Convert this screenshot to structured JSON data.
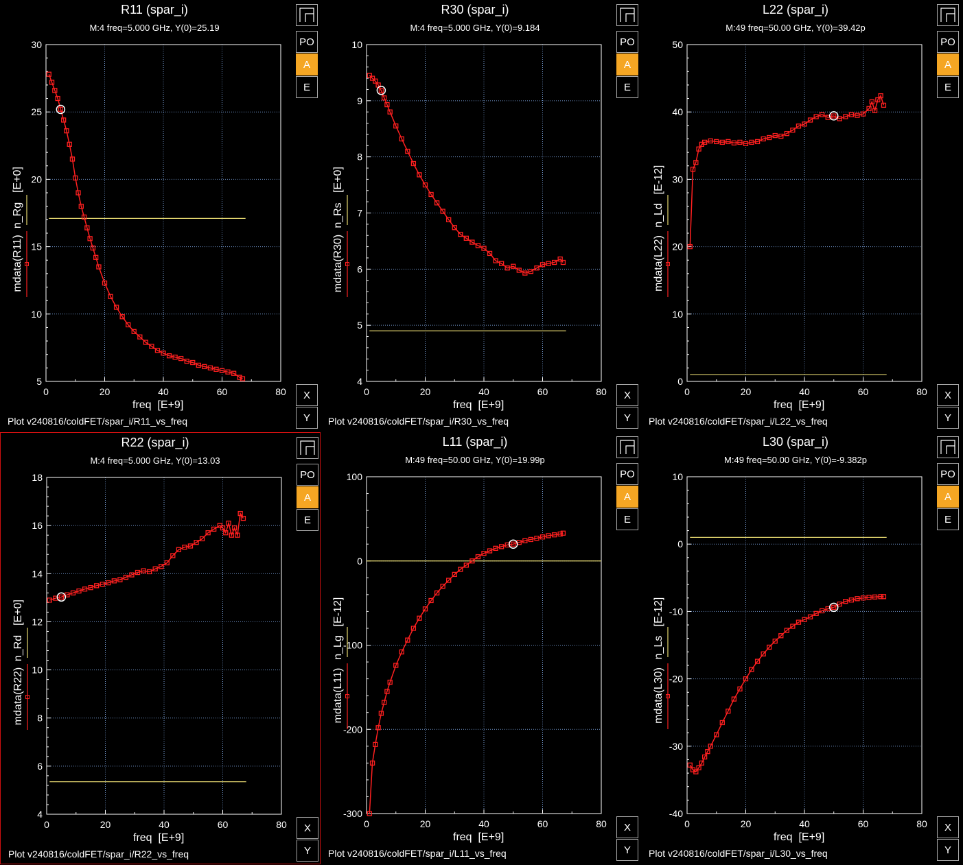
{
  "buttons": {
    "po": "PO",
    "a": "A",
    "e": "E",
    "x": "X",
    "y": "Y"
  },
  "colors": {
    "trace": "#ff2020",
    "ref": "#e6d870",
    "grid": "#6f93c8",
    "active_border": "#d01010",
    "accent": "#f5a623"
  },
  "panels": [
    {
      "title": "R11 (spar_i)",
      "subtitle": "M:4 freq=5.000  GHz, Y(0)=25.19",
      "xlabel": "freq  [E+9]",
      "ylabel_main": "mdata(R11)",
      "ylabel_ref": "n_Rg",
      "ylabel_unit": "[E+0]",
      "footer": "Plot v240816/coldFET/spar_i/R11_vs_freq",
      "active": false,
      "chart_data": {
        "type": "line",
        "xlim": [
          0,
          80
        ],
        "ylim": [
          5,
          30
        ],
        "xticks": [
          0,
          20,
          40,
          60,
          80
        ],
        "yticks": [
          5,
          10,
          15,
          20,
          25,
          30
        ],
        "xtick_labels": [
          "0",
          "20",
          "40",
          "60",
          "80"
        ],
        "ytick_labels": [
          "5",
          "10",
          "15",
          "20",
          "25",
          "30"
        ],
        "grid": true,
        "marker": {
          "x": 5,
          "y": 25.19
        },
        "ref_value": 17.1,
        "ref_xrange": [
          1,
          68
        ],
        "series": [
          {
            "x": [
              1,
              2,
              3,
              4,
              5,
              6,
              7,
              8,
              9,
              10,
              11,
              12,
              13,
              14,
              15,
              16,
              17,
              18,
              20,
              22,
              24,
              26,
              28,
              30,
              32,
              34,
              36,
              38,
              40,
              42,
              44,
              46,
              48,
              50,
              52,
              54,
              56,
              58,
              60,
              62,
              64,
              66,
              67
            ],
            "y": [
              27.8,
              27.2,
              26.6,
              26.0,
              25.2,
              24.4,
              23.6,
              22.6,
              21.5,
              20.1,
              19.0,
              18.0,
              17.2,
              16.4,
              15.6,
              14.9,
              14.2,
              13.5,
              12.3,
              11.3,
              10.5,
              9.8,
              9.2,
              8.7,
              8.3,
              7.9,
              7.6,
              7.3,
              7.1,
              6.9,
              6.8,
              6.7,
              6.5,
              6.4,
              6.2,
              6.1,
              6.0,
              5.9,
              5.8,
              5.7,
              5.6,
              5.3,
              5.2
            ]
          }
        ]
      }
    },
    {
      "title": "R30 (spar_i)",
      "subtitle": "M:4 freq=5.000  GHz, Y(0)=9.184",
      "xlabel": "freq  [E+9]",
      "ylabel_main": "mdata(R30)",
      "ylabel_ref": "n_Rs",
      "ylabel_unit": "[E+0]",
      "footer": "Plot v240816/coldFET/spar_i/R30_vs_freq",
      "active": false,
      "chart_data": {
        "type": "line",
        "xlim": [
          0,
          80
        ],
        "ylim": [
          4,
          10
        ],
        "xticks": [
          0,
          20,
          40,
          60,
          80
        ],
        "yticks": [
          4,
          5,
          6,
          7,
          8,
          9,
          10
        ],
        "xtick_labels": [
          "0",
          "20",
          "40",
          "60",
          "80"
        ],
        "ytick_labels": [
          "4",
          "5",
          "6",
          "7",
          "8",
          "9",
          "10"
        ],
        "grid": true,
        "marker": {
          "x": 5,
          "y": 9.184
        },
        "ref_value": 4.9,
        "ref_xrange": [
          1,
          68
        ],
        "series": [
          {
            "x": [
              1,
              2,
              3,
              4,
              5,
              6,
              7,
              8,
              10,
              12,
              14,
              16,
              18,
              20,
              22,
              24,
              26,
              28,
              30,
              32,
              34,
              36,
              38,
              40,
              42,
              44,
              46,
              48,
              50,
              52,
              54,
              56,
              58,
              60,
              62,
              64,
              66,
              67
            ],
            "y": [
              9.45,
              9.4,
              9.35,
              9.28,
              9.18,
              9.05,
              8.93,
              8.8,
              8.55,
              8.32,
              8.1,
              7.88,
              7.68,
              7.5,
              7.33,
              7.18,
              7.03,
              6.88,
              6.74,
              6.62,
              6.55,
              6.48,
              6.42,
              6.37,
              6.28,
              6.15,
              6.1,
              6.02,
              6.05,
              5.98,
              5.93,
              5.96,
              6.02,
              6.08,
              6.1,
              6.12,
              6.18,
              6.12
            ]
          }
        ]
      }
    },
    {
      "title": "L22 (spar_i)",
      "subtitle": "M:49 freq=50.00  GHz, Y(0)=39.42p",
      "xlabel": "freq  [E+9]",
      "ylabel_main": "mdata(L22)",
      "ylabel_ref": "n_Ld",
      "ylabel_unit": "[E-12]",
      "footer": "Plot v240816/coldFET/spar_i/L22_vs_freq",
      "active": false,
      "chart_data": {
        "type": "line",
        "xlim": [
          0,
          80
        ],
        "ylim": [
          0,
          50
        ],
        "xticks": [
          0,
          20,
          40,
          60,
          80
        ],
        "yticks": [
          0,
          10,
          20,
          30,
          40,
          50
        ],
        "xtick_labels": [
          "0",
          "20",
          "40",
          "60",
          "80"
        ],
        "ytick_labels": [
          "0",
          "10",
          "20",
          "30",
          "40",
          "50"
        ],
        "grid": true,
        "marker": {
          "x": 50,
          "y": 39.42
        },
        "ref_value": 1.0,
        "ref_xrange": [
          1,
          68
        ],
        "series": [
          {
            "x": [
              1,
              2,
              3,
              4,
              5,
              6,
              8,
              10,
              12,
              14,
              16,
              18,
              20,
              22,
              24,
              26,
              28,
              30,
              32,
              34,
              36,
              38,
              40,
              42,
              44,
              46,
              48,
              50,
              52,
              54,
              56,
              58,
              60,
              62,
              63,
              64,
              65,
              66,
              67
            ],
            "y": [
              20.0,
              31.5,
              32.5,
              34.5,
              35.2,
              35.5,
              35.7,
              35.6,
              35.5,
              35.6,
              35.4,
              35.5,
              35.3,
              35.5,
              35.6,
              36.0,
              36.2,
              36.5,
              36.4,
              36.8,
              37.3,
              37.9,
              38.2,
              38.8,
              39.3,
              39.6,
              39.2,
              39.4,
              39.0,
              39.3,
              39.6,
              39.5,
              39.7,
              40.5,
              41.5,
              40.2,
              41.8,
              42.4,
              41.0
            ]
          }
        ]
      }
    },
    {
      "title": "R22 (spar_i)",
      "subtitle": "M:4 freq=5.000  GHz, Y(0)=13.03",
      "xlabel": "freq  [E+9]",
      "ylabel_main": "mdata(R22)",
      "ylabel_ref": "n_Rd",
      "ylabel_unit": "[E+0]",
      "footer": "Plot v240816/coldFET/spar_i/R22_vs_freq",
      "active": true,
      "chart_data": {
        "type": "line",
        "xlim": [
          0,
          80
        ],
        "ylim": [
          4,
          18
        ],
        "xticks": [
          0,
          20,
          40,
          60,
          80
        ],
        "yticks": [
          4,
          6,
          8,
          10,
          12,
          14,
          16,
          18
        ],
        "xtick_labels": [
          "0",
          "20",
          "40",
          "60",
          "80"
        ],
        "ytick_labels": [
          "4",
          "6",
          "8",
          "10",
          "12",
          "14",
          "16",
          "18"
        ],
        "grid": true,
        "marker": {
          "x": 5,
          "y": 13.03
        },
        "ref_value": 5.35,
        "ref_xrange": [
          1,
          68
        ],
        "series": [
          {
            "x": [
              1,
              3,
              5,
              7,
              9,
              11,
              13,
              15,
              17,
              19,
              21,
              23,
              25,
              27,
              29,
              31,
              33,
              35,
              37,
              39,
              41,
              43,
              45,
              47,
              49,
              51,
              53,
              55,
              57,
              59,
              60,
              61,
              62,
              63,
              64,
              65,
              66,
              67
            ],
            "y": [
              12.9,
              12.98,
              13.03,
              13.12,
              13.2,
              13.28,
              13.36,
              13.42,
              13.5,
              13.56,
              13.62,
              13.7,
              13.75,
              13.85,
              13.95,
              14.05,
              14.12,
              14.08,
              14.2,
              14.3,
              14.45,
              14.75,
              15.0,
              15.1,
              15.15,
              15.3,
              15.45,
              15.7,
              15.85,
              16.0,
              15.9,
              15.7,
              16.1,
              15.6,
              15.9,
              15.6,
              16.5,
              16.3
            ]
          }
        ]
      }
    },
    {
      "title": "L11 (spar_i)",
      "subtitle": "M:49 freq=50.00  GHz, Y(0)=19.99p",
      "xlabel": "freq  [E+9]",
      "ylabel_main": "mdata(L11)",
      "ylabel_ref": "n_Lg",
      "ylabel_unit": "[E-12]",
      "footer": "Plot v240816/coldFET/spar_i/L11_vs_freq",
      "active": false,
      "chart_data": {
        "type": "line",
        "xlim": [
          0,
          80
        ],
        "ylim": [
          -300,
          100
        ],
        "xticks": [
          0,
          20,
          40,
          60,
          80
        ],
        "yticks": [
          -300,
          -200,
          -100,
          0,
          100
        ],
        "xtick_labels": [
          "0",
          "20",
          "40",
          "60",
          "80"
        ],
        "ytick_labels": [
          "-300",
          "-200",
          "-100",
          "0",
          "100"
        ],
        "grid": true,
        "marker": {
          "x": 50,
          "y": 19.99
        },
        "ref_value": 0,
        "ref_xrange": [
          0,
          80
        ],
        "series": [
          {
            "x": [
              1,
              2,
              3,
              4,
              5,
              6,
              7,
              8,
              10,
              12,
              14,
              16,
              18,
              20,
              22,
              24,
              26,
              28,
              30,
              32,
              34,
              36,
              38,
              40,
              42,
              44,
              46,
              48,
              50,
              52,
              54,
              56,
              58,
              60,
              62,
              64,
              66,
              67
            ],
            "y": [
              -300,
              -240,
              -218,
              -198,
              -181,
              -168,
              -155,
              -144,
              -124,
              -108,
              -94,
              -80,
              -68,
              -57,
              -47,
              -38,
              -30,
              -23,
              -16,
              -10,
              -5,
              0,
              5,
              9,
              12,
              15,
              17,
              19,
              20,
              22,
              24,
              25.5,
              27,
              28.5,
              30,
              31,
              32,
              33
            ]
          }
        ]
      }
    },
    {
      "title": "L30 (spar_i)",
      "subtitle": "M:49 freq=50.00  GHz, Y(0)=-9.382p",
      "xlabel": "freq  [E+9]",
      "ylabel_main": "mdata(L30)",
      "ylabel_ref": "n_Ls",
      "ylabel_unit": "[E-12]",
      "footer": "Plot v240816/coldFET/spar_i/L30_vs_freq",
      "active": false,
      "chart_data": {
        "type": "line",
        "xlim": [
          0,
          80
        ],
        "ylim": [
          -40,
          10
        ],
        "xticks": [
          0,
          20,
          40,
          60,
          80
        ],
        "yticks": [
          -40,
          -30,
          -20,
          -10,
          0,
          10
        ],
        "xtick_labels": [
          "0",
          "20",
          "40",
          "60",
          "80"
        ],
        "ytick_labels": [
          "-40",
          "-30",
          "-20",
          "-10",
          "0",
          "10"
        ],
        "grid": true,
        "marker": {
          "x": 50,
          "y": -9.382
        },
        "ref_value": 1.0,
        "ref_xrange": [
          1,
          68
        ],
        "series": [
          {
            "x": [
              1,
              2,
              3,
              4,
              5,
              6,
              7,
              8,
              10,
              12,
              14,
              16,
              18,
              20,
              22,
              24,
              26,
              28,
              30,
              32,
              34,
              36,
              38,
              40,
              42,
              44,
              46,
              48,
              50,
              52,
              54,
              56,
              58,
              60,
              62,
              64,
              66,
              67
            ],
            "y": [
              -32.8,
              -33.5,
              -33.8,
              -33.2,
              -32.5,
              -31.6,
              -30.8,
              -30.0,
              -28.3,
              -26.5,
              -24.8,
              -23.0,
              -21.5,
              -20.0,
              -18.6,
              -17.4,
              -16.3,
              -15.3,
              -14.4,
              -13.6,
              -12.8,
              -12.2,
              -11.6,
              -11.2,
              -10.8,
              -10.3,
              -9.9,
              -9.6,
              -9.38,
              -8.9,
              -8.5,
              -8.3,
              -8.1,
              -8.0,
              -7.9,
              -7.85,
              -7.8,
              -7.8
            ]
          }
        ]
      }
    }
  ]
}
